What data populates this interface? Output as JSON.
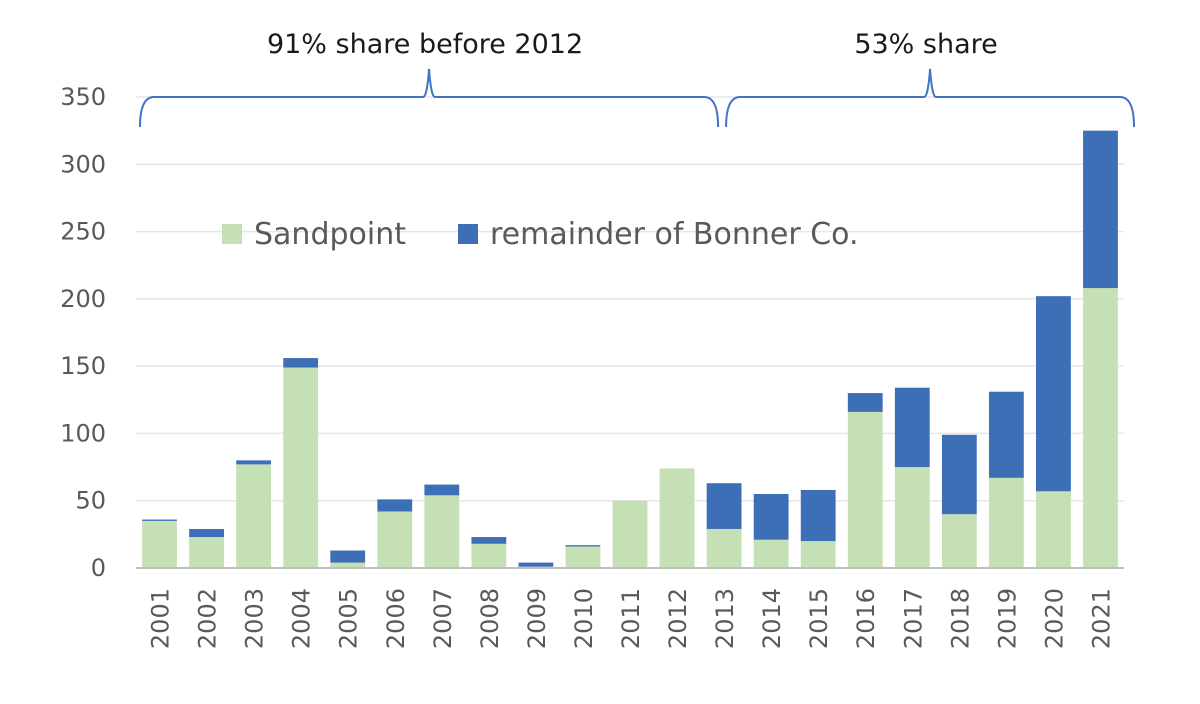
{
  "chart_data": {
    "type": "bar",
    "stacked": true,
    "title": "",
    "xlabel": "",
    "ylabel": "",
    "ylim": [
      0,
      350
    ],
    "yticks": [
      0,
      50,
      100,
      150,
      200,
      250,
      300,
      350
    ],
    "grid": true,
    "legend_position": "upper-left",
    "categories": [
      "2001",
      "2002",
      "2003",
      "2004",
      "2005",
      "2006",
      "2007",
      "2008",
      "2009",
      "2010",
      "2011",
      "2012",
      "2013",
      "2014",
      "2015",
      "2016",
      "2017",
      "2018",
      "2019",
      "2020",
      "2021"
    ],
    "series": [
      {
        "name": "Sandpoint",
        "color": "#c5e0b4",
        "values": [
          35,
          23,
          77,
          149,
          4,
          42,
          54,
          18,
          1,
          16,
          50,
          74,
          29,
          21,
          20,
          116,
          75,
          40,
          67,
          57,
          208
        ]
      },
      {
        "name": "remainder of Bonner Co.",
        "color": "#3d6fb6",
        "values": [
          1,
          6,
          3,
          7,
          9,
          9,
          8,
          5,
          3,
          1,
          0,
          0,
          34,
          34,
          38,
          14,
          59,
          59,
          64,
          145,
          117
        ]
      }
    ],
    "annotations": [
      {
        "text": "91% share before 2012",
        "from": "2001",
        "to": "2013",
        "color": "#4472c4"
      },
      {
        "text": "53% share",
        "from": "2013",
        "to": "2021",
        "color": "#4472c4"
      }
    ]
  }
}
